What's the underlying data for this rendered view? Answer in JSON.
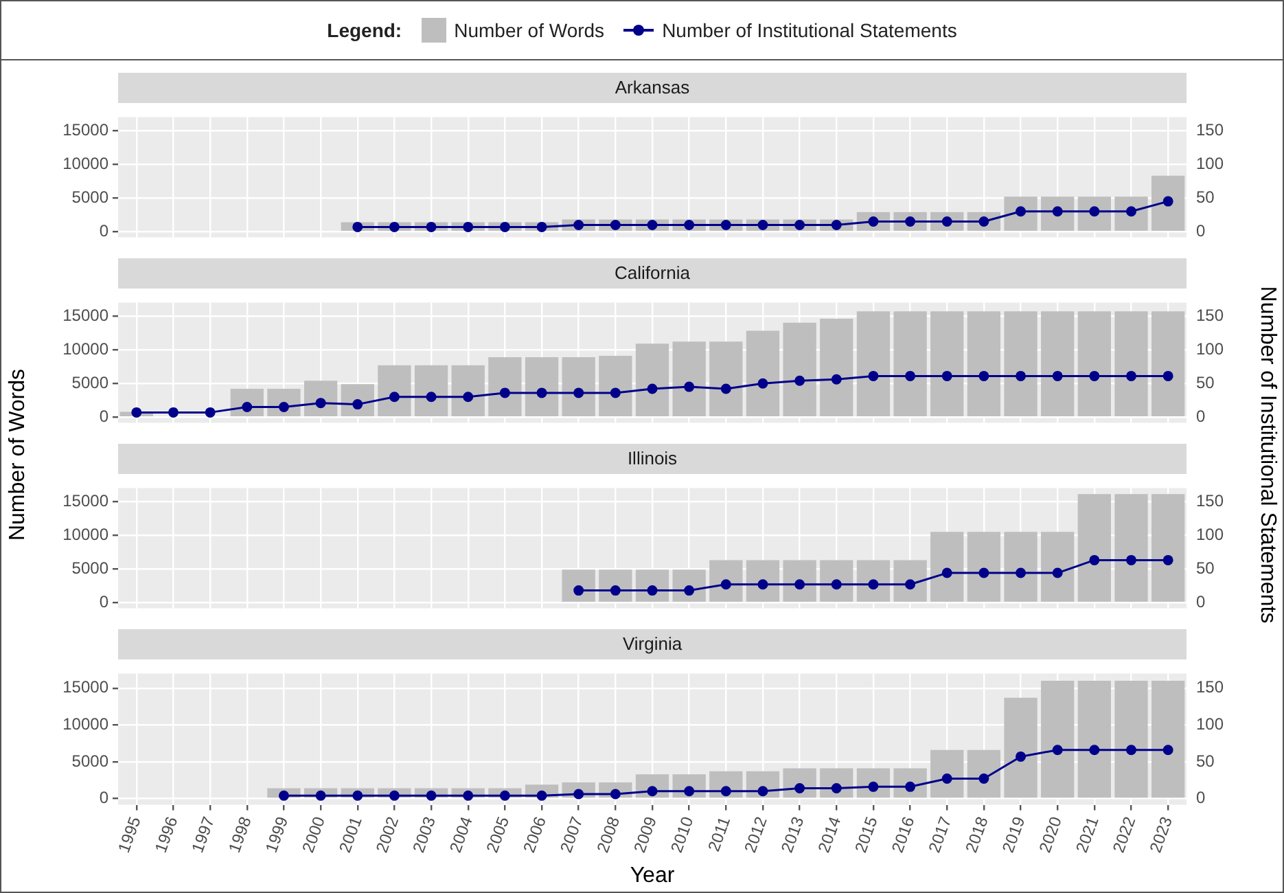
{
  "chart_data": [
    {
      "type": "bar",
      "title": "Arkansas",
      "legend_title": "Legend:",
      "legend": "top",
      "tick_labels": "y",
      "grid": true,
      "marker": "circle",
      "categories": [
        "1995",
        "1996",
        "1997",
        "1998",
        "1999",
        "2000",
        "2001",
        "2002",
        "2003",
        "2004",
        "2005",
        "2006",
        "2007",
        "2008",
        "2009",
        "2010",
        "2011",
        "2012",
        "2013",
        "2014",
        "2015",
        "2016",
        "2017",
        "2018",
        "2019",
        "2020",
        "2021",
        "2022",
        "2023"
      ],
      "ylim": [
        -850,
        17000
      ],
      "yticks": [
        0,
        5000,
        10000,
        15000
      ],
      "y2lim": [
        -8.5,
        170
      ],
      "y2ticks": [
        0,
        50,
        100,
        150
      ],
      "series": [
        {
          "name": "Number of Words",
          "color": "#bebebe",
          "values": [
            null,
            null,
            null,
            null,
            null,
            null,
            1400,
            1400,
            1400,
            1400,
            1400,
            1400,
            1800,
            1800,
            1800,
            1800,
            1800,
            1800,
            1800,
            1800,
            2900,
            2900,
            2900,
            2900,
            5200,
            5200,
            5200,
            5200,
            8300
          ]
        },
        {
          "name": "Number of Institutional Statements",
          "type": "line",
          "axis": "y2",
          "color": "#00008b",
          "values": [
            null,
            null,
            null,
            null,
            null,
            null,
            7,
            7,
            7,
            7,
            7,
            7,
            10,
            10,
            10,
            10,
            10,
            10,
            10,
            10,
            15,
            15,
            15,
            15,
            30,
            30,
            30,
            30,
            45
          ]
        }
      ]
    },
    {
      "type": "bar",
      "title": "California",
      "ylabel": "Number of Words",
      "tick_labels": "y",
      "grid": true,
      "marker": "circle",
      "categories": [
        "1995",
        "1996",
        "1997",
        "1998",
        "1999",
        "2000",
        "2001",
        "2002",
        "2003",
        "2004",
        "2005",
        "2006",
        "2007",
        "2008",
        "2009",
        "2010",
        "2011",
        "2012",
        "2013",
        "2014",
        "2015",
        "2016",
        "2017",
        "2018",
        "2019",
        "2020",
        "2021",
        "2022",
        "2023"
      ],
      "ylim": [
        -850,
        17000
      ],
      "yticks": [
        0,
        5000,
        10000,
        15000
      ],
      "y2lim": [
        -8.5,
        170
      ],
      "y2ticks": [
        0,
        50,
        100,
        150
      ],
      "series": [
        {
          "color": "#bebebe",
          "values": [
            800,
            null,
            null,
            4200,
            4200,
            5400,
            4900,
            7700,
            7700,
            7700,
            8900,
            8900,
            8900,
            9100,
            10900,
            11200,
            11200,
            12800,
            14000,
            14600,
            15700,
            15700,
            15700,
            15700,
            15700,
            15700,
            15700,
            15700,
            15700
          ]
        },
        {
          "type": "line",
          "axis": "y2",
          "color": "#00008b",
          "values": [
            7,
            7,
            7,
            15,
            15,
            21,
            19,
            30,
            30,
            30,
            36,
            36,
            36,
            36,
            42,
            45,
            42,
            50,
            54,
            56,
            61,
            61,
            61,
            61,
            61,
            61,
            61,
            61,
            61
          ]
        }
      ]
    },
    {
      "type": "bar",
      "title": "Illinois",
      "y2label": "Number of Institutional Statements",
      "tick_labels": "y",
      "grid": true,
      "marker": "circle",
      "categories": [
        "1995",
        "1996",
        "1997",
        "1998",
        "1999",
        "2000",
        "2001",
        "2002",
        "2003",
        "2004",
        "2005",
        "2006",
        "2007",
        "2008",
        "2009",
        "2010",
        "2011",
        "2012",
        "2013",
        "2014",
        "2015",
        "2016",
        "2017",
        "2018",
        "2019",
        "2020",
        "2021",
        "2022",
        "2023"
      ],
      "ylim": [
        -850,
        17000
      ],
      "yticks": [
        0,
        5000,
        10000,
        15000
      ],
      "y2lim": [
        -8.5,
        170
      ],
      "y2ticks": [
        0,
        50,
        100,
        150
      ],
      "series": [
        {
          "color": "#bebebe",
          "values": [
            null,
            null,
            null,
            null,
            null,
            null,
            null,
            null,
            null,
            null,
            null,
            null,
            4900,
            4900,
            4900,
            4900,
            6300,
            6300,
            6300,
            6300,
            6300,
            6300,
            10500,
            10500,
            10500,
            10500,
            16100,
            16100,
            16100
          ]
        },
        {
          "type": "line",
          "axis": "y2",
          "color": "#00008b",
          "values": [
            null,
            null,
            null,
            null,
            null,
            null,
            null,
            null,
            null,
            null,
            null,
            null,
            18,
            18,
            18,
            18,
            27,
            27,
            27,
            27,
            27,
            27,
            44,
            44,
            44,
            44,
            63,
            63,
            63
          ]
        }
      ]
    },
    {
      "type": "bar",
      "title": "Virginia",
      "xlabel": "Year",
      "grid": true,
      "marker": "circle",
      "categories": [
        "1995",
        "1996",
        "1997",
        "1998",
        "1999",
        "2000",
        "2001",
        "2002",
        "2003",
        "2004",
        "2005",
        "2006",
        "2007",
        "2008",
        "2009",
        "2010",
        "2011",
        "2012",
        "2013",
        "2014",
        "2015",
        "2016",
        "2017",
        "2018",
        "2019",
        "2020",
        "2021",
        "2022",
        "2023"
      ],
      "ylim": [
        -850,
        17000
      ],
      "yticks": [
        0,
        5000,
        10000,
        15000
      ],
      "y2lim": [
        -8.5,
        170
      ],
      "y2ticks": [
        0,
        50,
        100,
        150
      ],
      "series": [
        {
          "color": "#bebebe",
          "values": [
            null,
            null,
            null,
            null,
            1400,
            1400,
            1400,
            1400,
            1400,
            1400,
            1400,
            1900,
            2200,
            2200,
            3300,
            3300,
            3700,
            3700,
            4100,
            4100,
            4100,
            4100,
            6600,
            6600,
            13700,
            16000,
            16000,
            16000,
            16000
          ]
        },
        {
          "type": "line",
          "axis": "y2",
          "color": "#00008b",
          "values": [
            null,
            null,
            null,
            null,
            4,
            4,
            4,
            4,
            4,
            4,
            4,
            4,
            6,
            6,
            10,
            10,
            10,
            10,
            14,
            14,
            16,
            16,
            27,
            27,
            57,
            66,
            66,
            66,
            66
          ]
        }
      ]
    }
  ]
}
